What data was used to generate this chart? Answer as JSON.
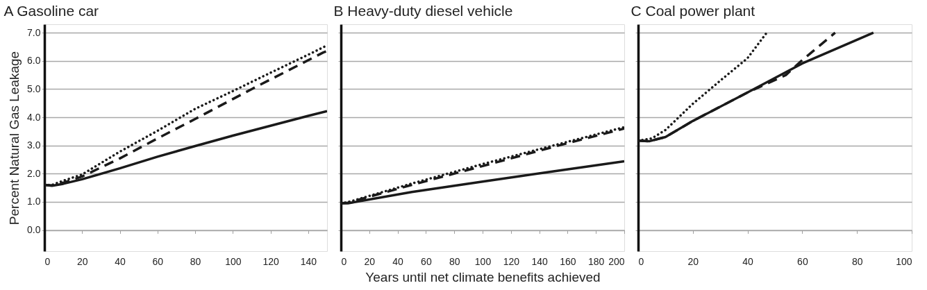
{
  "chart_data": [
    {
      "type": "line",
      "title": "A   Gasoline car",
      "ylabel": "Percent Natural Gas Leakage",
      "xlim": [
        0,
        150
      ],
      "xticks": [
        0,
        20,
        40,
        60,
        80,
        100,
        120,
        140
      ],
      "ylim": [
        -0.75,
        7.3
      ],
      "yticks": [
        {
          "value": 0,
          "label": "0.0"
        },
        {
          "value": 1,
          "label": "1.0"
        },
        {
          "value": 2,
          "label": "2.0"
        },
        {
          "value": 3,
          "label": "3.0"
        },
        {
          "value": 4,
          "label": "4.0"
        },
        {
          "value": 5,
          "label": "5.0"
        },
        {
          "value": 6,
          "label": "6.0"
        },
        {
          "value": 7,
          "label": "7.0"
        }
      ],
      "grid": "y",
      "series": [
        {
          "color": "#1a1a1a",
          "line_style": "solid",
          "x": [
            0,
            4,
            10,
            20,
            40,
            60,
            80,
            100,
            120,
            140,
            150
          ],
          "values": [
            1.6,
            1.57,
            1.64,
            1.8,
            2.19,
            2.6,
            2.98,
            3.35,
            3.7,
            4.05,
            4.22
          ]
        },
        {
          "color": "#1a1a1a",
          "line_style": "dashed",
          "x": [
            0,
            4,
            10,
            20,
            40,
            60,
            80,
            110,
            148,
            150
          ],
          "values": [
            1.6,
            1.58,
            1.68,
            1.9,
            2.54,
            3.25,
            3.94,
            5.0,
            6.3,
            6.35
          ]
        },
        {
          "color": "#1a1a1a",
          "line_style": "dotted",
          "x": [
            0,
            4,
            10,
            20,
            40,
            60,
            80,
            100,
            120,
            140,
            150
          ],
          "values": [
            1.6,
            1.6,
            1.75,
            1.97,
            2.78,
            3.52,
            4.3,
            4.93,
            5.58,
            6.22,
            6.55
          ]
        }
      ]
    },
    {
      "type": "line",
      "title": "B   Heavy-duty diesel vehicle",
      "xlabel": "Years until net climate benefits achieved",
      "xlim": [
        0,
        200
      ],
      "xticks": [
        0,
        20,
        40,
        60,
        80,
        100,
        120,
        140,
        160,
        180,
        200
      ],
      "ylim": [
        -0.75,
        7.3
      ],
      "yticks": [
        0,
        1,
        2,
        3,
        4,
        5,
        6,
        7
      ],
      "grid": "y",
      "tick_labels": "x",
      "series": [
        {
          "color": "#1a1a1a",
          "line_style": "solid",
          "x": [
            0,
            5,
            50,
            100,
            150,
            200
          ],
          "values": [
            0.95,
            0.95,
            1.35,
            1.72,
            2.08,
            2.44
          ]
        },
        {
          "color": "#1a1a1a",
          "line_style": "dashed",
          "x": [
            0,
            5,
            50,
            100,
            150,
            200
          ],
          "values": [
            0.95,
            0.97,
            1.6,
            2.27,
            2.95,
            3.6
          ]
        },
        {
          "color": "#1a1a1a",
          "line_style": "dotted",
          "x": [
            0,
            5,
            50,
            100,
            150,
            200
          ],
          "values": [
            0.95,
            0.99,
            1.65,
            2.34,
            3.0,
            3.65
          ]
        }
      ]
    },
    {
      "type": "line",
      "title": "C   Coal power plant",
      "xlim": [
        0,
        100
      ],
      "xticks": [
        0,
        20,
        40,
        60,
        80,
        100
      ],
      "ylim": [
        -0.75,
        7.3
      ],
      "yticks": [
        0,
        1,
        2,
        3,
        4,
        5,
        6,
        7
      ],
      "grid": "y",
      "tick_labels": "x",
      "series": [
        {
          "color": "#1a1a1a",
          "line_style": "solid",
          "x": [
            0,
            4,
            10,
            20,
            40,
            60,
            86
          ],
          "values": [
            3.17,
            3.15,
            3.3,
            3.87,
            4.88,
            5.91,
            7.0
          ]
        },
        {
          "color": "#1a1a1a",
          "line_style": "dashed",
          "x": [
            0,
            4,
            10,
            20,
            40,
            54,
            60,
            72
          ],
          "values": [
            3.17,
            3.15,
            3.3,
            3.87,
            4.88,
            5.5,
            6.03,
            7.0
          ]
        },
        {
          "color": "#1a1a1a",
          "line_style": "dotted",
          "x": [
            0,
            5,
            10,
            20,
            30,
            40,
            47
          ],
          "values": [
            3.17,
            3.25,
            3.55,
            4.48,
            5.3,
            6.1,
            7.0
          ]
        }
      ]
    }
  ]
}
